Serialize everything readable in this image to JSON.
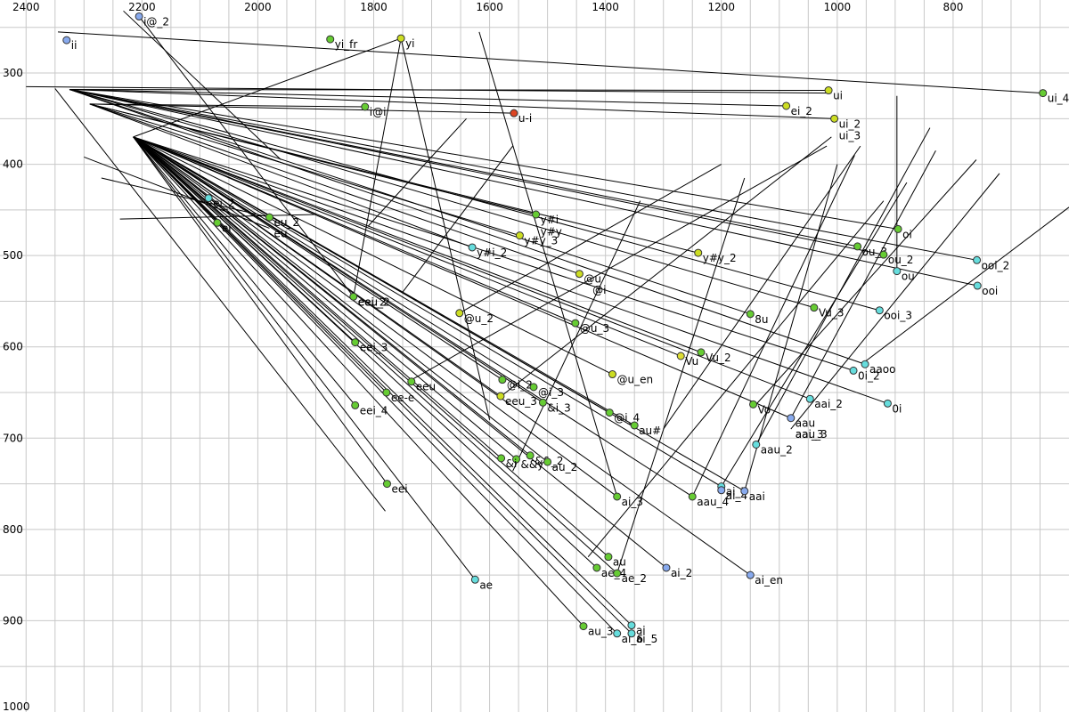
{
  "chart_data": {
    "type": "scatter",
    "title": "",
    "xlabel": "",
    "ylabel": "",
    "x_axis": "F2 (reversed)",
    "y_axis": "F1 (reversed)",
    "xlim": [
      2445,
      600
    ],
    "ylim": [
      220,
      1000
    ],
    "x_ticks": [
      2400,
      2200,
      2000,
      1800,
      1600,
      1400,
      1200,
      1000,
      800
    ],
    "y_ticks": [
      300,
      400,
      500,
      600,
      700,
      800,
      900,
      1000
    ],
    "grid": true,
    "colors": {
      "green": "#66cc33",
      "yellowgreen": "#ccdd22",
      "yellow": "#dddd33",
      "cyan": "#66dddd",
      "blue": "#88aaee",
      "red": "#dd4422"
    },
    "points": [
      {
        "label": "ii",
        "x": 2330,
        "y": 264,
        "color": "blue"
      },
      {
        "label": "i@_2",
        "x": 2205,
        "y": 238,
        "color": "blue"
      },
      {
        "label": "yi_fr",
        "x": 1875,
        "y": 263,
        "color": "green"
      },
      {
        "label": "yi",
        "x": 1753,
        "y": 262,
        "color": "yellowgreen"
      },
      {
        "label": "i@i",
        "x": 1815,
        "y": 337,
        "color": "green"
      },
      {
        "label": "u-i",
        "x": 1558,
        "y": 344,
        "color": "red"
      },
      {
        "label": "ui",
        "x": 1015,
        "y": 319,
        "color": "yellowgreen"
      },
      {
        "label": "ei_2",
        "x": 1088,
        "y": 336,
        "color": "yellowgreen"
      },
      {
        "label": "ui_2",
        "x": 1005,
        "y": 350,
        "color": "yellowgreen"
      },
      {
        "label": "ui_3",
        "x": 1005,
        "y": 363,
        "color": "none"
      },
      {
        "label": "ui_4",
        "x": 645,
        "y": 322,
        "color": "green"
      },
      {
        "label": "ei_2",
        "x": 2085,
        "y": 437,
        "color": "cyan"
      },
      {
        "label": "ei",
        "x": 2070,
        "y": 464,
        "color": "green"
      },
      {
        "label": "eu_2",
        "x": 1980,
        "y": 458,
        "color": "green"
      },
      {
        "label": "eu",
        "x": 1980,
        "y": 470,
        "color": "none"
      },
      {
        "label": "y#i",
        "x": 1520,
        "y": 455,
        "color": "green"
      },
      {
        "label": "y#y",
        "x": 1520,
        "y": 468,
        "color": "none"
      },
      {
        "label": "y#y_3",
        "x": 1548,
        "y": 478,
        "color": "yellowgreen"
      },
      {
        "label": "y#i_2",
        "x": 1630,
        "y": 491,
        "color": "cyan"
      },
      {
        "label": "y#y_2",
        "x": 1240,
        "y": 497,
        "color": "yellowgreen"
      },
      {
        "label": "oi",
        "x": 895,
        "y": 471,
        "color": "green"
      },
      {
        "label": "ou_3",
        "x": 965,
        "y": 490,
        "color": "green"
      },
      {
        "label": "ou_2",
        "x": 920,
        "y": 499,
        "color": "green"
      },
      {
        "label": "ou",
        "x": 897,
        "y": 517,
        "color": "cyan"
      },
      {
        "label": "ooi_2",
        "x": 759,
        "y": 505,
        "color": "cyan"
      },
      {
        "label": "ooi",
        "x": 758,
        "y": 533,
        "color": "cyan"
      },
      {
        "label": "@u",
        "x": 1445,
        "y": 520,
        "color": "yellowgreen"
      },
      {
        "label": "@i",
        "x": 1430,
        "y": 532,
        "color": "none"
      },
      {
        "label": "eeu_2",
        "x": 1835,
        "y": 545,
        "color": "green"
      },
      {
        "label": "eeu",
        "x": 1835,
        "y": 545,
        "color": "none"
      },
      {
        "label": "eei_2",
        "x": 1835,
        "y": 545,
        "color": "none"
      },
      {
        "label": "@u_2",
        "x": 1652,
        "y": 563,
        "color": "yellowgreen"
      },
      {
        "label": "@u_3",
        "x": 1452,
        "y": 574,
        "color": "green"
      },
      {
        "label": "8u",
        "x": 1150,
        "y": 564,
        "color": "green"
      },
      {
        "label": "Vu_3",
        "x": 1040,
        "y": 557,
        "color": "green"
      },
      {
        "label": "ooi_3",
        "x": 927,
        "y": 560,
        "color": "cyan"
      },
      {
        "label": "eei_3",
        "x": 1832,
        "y": 595,
        "color": "green"
      },
      {
        "label": "Vu",
        "x": 1270,
        "y": 610,
        "color": "yellow"
      },
      {
        "label": "Vu_2",
        "x": 1235,
        "y": 606,
        "color": "green"
      },
      {
        "label": "aaoo",
        "x": 952,
        "y": 619,
        "color": "cyan"
      },
      {
        "label": "0i_2",
        "x": 972,
        "y": 626,
        "color": "cyan"
      },
      {
        "label": "@u_en",
        "x": 1388,
        "y": 630,
        "color": "yellowgreen"
      },
      {
        "label": "eeu",
        "x": 1735,
        "y": 638,
        "color": "green"
      },
      {
        "label": "ee-e",
        "x": 1778,
        "y": 650,
        "color": "green"
      },
      {
        "label": "@i_2",
        "x": 1578,
        "y": 636,
        "color": "green"
      },
      {
        "label": "eeu_3",
        "x": 1581,
        "y": 654,
        "color": "yellowgreen"
      },
      {
        "label": "@i_3",
        "x": 1524,
        "y": 644,
        "color": "green"
      },
      {
        "label": "&i_3",
        "x": 1508,
        "y": 661,
        "color": "green"
      },
      {
        "label": "eei_4",
        "x": 1832,
        "y": 664,
        "color": "green"
      },
      {
        "label": "0i",
        "x": 913,
        "y": 662,
        "color": "cyan"
      },
      {
        "label": "aai_2",
        "x": 1047,
        "y": 657,
        "color": "cyan"
      },
      {
        "label": "Vo",
        "x": 1145,
        "y": 663,
        "color": "green"
      },
      {
        "label": "@i_4",
        "x": 1393,
        "y": 672,
        "color": "green"
      },
      {
        "label": "au#",
        "x": 1350,
        "y": 686,
        "color": "green"
      },
      {
        "label": "aau",
        "x": 1080,
        "y": 678,
        "color": "blue"
      },
      {
        "label": "aau_3",
        "x": 1080,
        "y": 690,
        "color": "none"
      },
      {
        "label": "aai_3",
        "x": 1080,
        "y": 690,
        "color": "none"
      },
      {
        "label": "aau_2",
        "x": 1140,
        "y": 707,
        "color": "cyan"
      },
      {
        "label": "&&y",
        "x": 1554,
        "y": 723,
        "color": "green"
      },
      {
        "label": "&&_2",
        "x": 1530,
        "y": 719,
        "color": "green"
      },
      {
        "label": "&i",
        "x": 1580,
        "y": 722,
        "color": "green"
      },
      {
        "label": "au_2",
        "x": 1500,
        "y": 726,
        "color": "green"
      },
      {
        "label": "eei",
        "x": 1777,
        "y": 750,
        "color": "green"
      },
      {
        "label": "ai_7",
        "x": 1200,
        "y": 753,
        "color": "cyan"
      },
      {
        "label": "aau_4",
        "x": 1250,
        "y": 764,
        "color": "green"
      },
      {
        "label": "ai_4",
        "x": 1200,
        "y": 757,
        "color": "blue"
      },
      {
        "label": "aai",
        "x": 1160,
        "y": 758,
        "color": "blue"
      },
      {
        "label": "ai_3",
        "x": 1380,
        "y": 764,
        "color": "green"
      },
      {
        "label": "au",
        "x": 1395,
        "y": 830,
        "color": "green"
      },
      {
        "label": "ae_4",
        "x": 1415,
        "y": 842,
        "color": "green"
      },
      {
        "label": "ae_2",
        "x": 1380,
        "y": 848,
        "color": "green"
      },
      {
        "label": "ai_2",
        "x": 1295,
        "y": 842,
        "color": "blue"
      },
      {
        "label": "ai_en",
        "x": 1150,
        "y": 850,
        "color": "blue"
      },
      {
        "label": "ae",
        "x": 1625,
        "y": 855,
        "color": "cyan"
      },
      {
        "label": "au_3",
        "x": 1438,
        "y": 906,
        "color": "green"
      },
      {
        "label": "ai",
        "x": 1355,
        "y": 905,
        "color": "cyan"
      },
      {
        "label": "ai_6",
        "x": 1380,
        "y": 914,
        "color": "cyan"
      },
      {
        "label": "ai_5",
        "x": 1355,
        "y": 914,
        "color": "cyan"
      }
    ]
  }
}
